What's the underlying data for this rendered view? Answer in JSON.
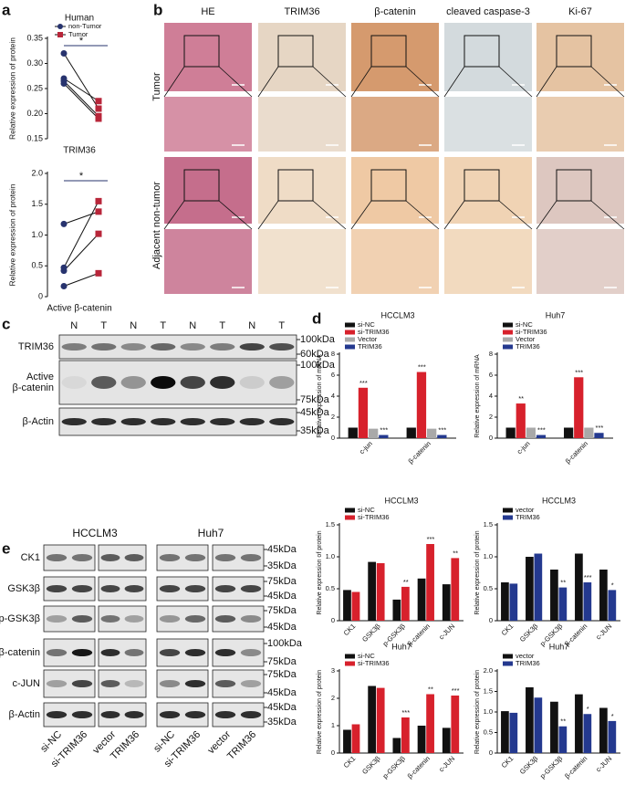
{
  "panel_letters": [
    "a",
    "b",
    "c",
    "d",
    "e"
  ],
  "histology": {
    "columns": [
      "HE",
      "TRIM36",
      "β-catenin",
      "cleaved caspase-3",
      "Ki-67"
    ],
    "rows": [
      "Tumor",
      "Adjacent non-tumor"
    ]
  },
  "blot_c": {
    "lanes": [
      "N",
      "T",
      "N",
      "T",
      "N",
      "T",
      "N",
      "T"
    ],
    "rows": [
      {
        "label": [
          "TRIM36"
        ],
        "markers": [
          "100kDa",
          "60kDa"
        ]
      },
      {
        "label": [
          "Active",
          "β-catenin"
        ],
        "markers": [
          "100kDa",
          "75kDa"
        ]
      },
      {
        "label": [
          "β-Actin"
        ],
        "markers": [
          "45kDa",
          "35kDa"
        ]
      }
    ]
  },
  "blot_e": {
    "cell_lines": [
      "HCCLM3",
      "Huh7"
    ],
    "lanes": [
      "si-NC",
      "si-TRIM36",
      "vector",
      "TRIM36",
      "si-NC",
      "si-TRIM36",
      "vector",
      "TRIM36"
    ],
    "rows": [
      {
        "label": "CK1",
        "markers": [
          "45kDa",
          "35kDa"
        ]
      },
      {
        "label": "GSK3β",
        "markers": [
          "75kDa",
          "45kDa"
        ]
      },
      {
        "label": "p-GSK3β",
        "markers": [
          "75kDa",
          "45kDa"
        ]
      },
      {
        "label": "β-catenin",
        "markers": [
          "100kDa",
          "75kDa"
        ]
      },
      {
        "label": "c-JUN",
        "markers": [
          "75kDa",
          "45kDa"
        ]
      },
      {
        "label": "β-Actin",
        "markers": [
          "45kDa",
          "35kDa"
        ]
      }
    ]
  },
  "chart_data": [
    {
      "type": "paired",
      "title": "Human",
      "xlabel": "TRIM36",
      "ylabel": "Relative expression of protein",
      "series": [
        {
          "name": "non-Tumor",
          "color": "#27336e",
          "values": [
            0.32,
            0.27,
            0.265,
            0.26
          ]
        },
        {
          "name": "Tumor",
          "color": "#b8263a",
          "values": [
            0.21,
            0.225,
            0.195,
            0.19
          ]
        }
      ],
      "ylim": [
        0.15,
        0.35
      ],
      "yticks": [
        0.15,
        {
          "value": 0.2,
          "label": "0.20"
        },
        0.25,
        {
          "value": 0.3,
          "label": "0.30"
        },
        0.35
      ],
      "annotation": "*"
    },
    {
      "type": "paired",
      "xlabel": "Active β-catenin",
      "ylabel": "Relative expression of protein",
      "series": [
        {
          "color": "#27336e",
          "values": [
            1.18,
            0.47,
            0.42,
            0.17
          ]
        },
        {
          "color": "#b8263a",
          "values": [
            1.38,
            1.55,
            1.02,
            0.38
          ]
        }
      ],
      "ylim": [
        0,
        2
      ],
      "yticks": [
        0,
        0.5,
        {
          "value": 1,
          "label": "1.0"
        },
        1.5,
        {
          "value": 2,
          "label": "2.0"
        }
      ],
      "annotation": "*"
    },
    {
      "type": "bar",
      "title": "HCCLM3",
      "ylabel": "Relative expression of mRNA",
      "categories": [
        "c-jun",
        "β-catenin"
      ],
      "series": [
        {
          "name": "si-NC",
          "color": "#111111",
          "values": [
            1.0,
            1.0
          ],
          "stars": [
            null,
            null
          ]
        },
        {
          "name": "si-TRIM36",
          "color": "#d7212c",
          "values": [
            4.8,
            6.3
          ],
          "stars": [
            "***",
            "***"
          ]
        },
        {
          "name": "Vector",
          "color": "#a9a9a9",
          "values": [
            0.9,
            0.9
          ],
          "stars": [
            null,
            null
          ]
        },
        {
          "name": "TRIM36",
          "color": "#24398f",
          "values": [
            0.3,
            0.3
          ],
          "stars": [
            "***",
            "***"
          ]
        }
      ],
      "ylim": [
        0,
        8
      ],
      "yticks": [
        0,
        2,
        4,
        6,
        8
      ]
    },
    {
      "type": "bar",
      "title": "Huh7",
      "ylabel": "Relative expression of mRNA",
      "categories": [
        "c-jun",
        "β-catenin"
      ],
      "series": [
        {
          "name": "si-NC",
          "color": "#111111",
          "values": [
            1.0,
            1.0
          ],
          "stars": [
            null,
            null
          ]
        },
        {
          "name": "si-TRIM36",
          "color": "#d7212c",
          "values": [
            3.3,
            5.8
          ],
          "stars": [
            "**",
            "***"
          ]
        },
        {
          "name": "Vector",
          "color": "#a9a9a9",
          "values": [
            1.0,
            1.0
          ],
          "stars": [
            null,
            null
          ]
        },
        {
          "name": "TRIM36",
          "color": "#24398f",
          "values": [
            0.3,
            0.5
          ],
          "stars": [
            "***",
            "***"
          ]
        }
      ],
      "ylim": [
        0,
        8
      ],
      "yticks": [
        0,
        2,
        4,
        6,
        8
      ]
    },
    {
      "type": "bar",
      "title": "HCCLM3",
      "ylabel": "Relative expression of protein",
      "categories": [
        "CK1",
        "GSK3β",
        "p-GSK3β",
        "β-catenin",
        "c-JUN"
      ],
      "series": [
        {
          "name": "si-NC",
          "color": "#111111",
          "values": [
            0.48,
            0.92,
            0.33,
            0.66,
            0.57
          ],
          "stars": [
            null,
            null,
            null,
            null,
            null
          ]
        },
        {
          "name": "si-TRIM36",
          "color": "#d7212c",
          "values": [
            0.45,
            0.9,
            0.53,
            1.2,
            0.98
          ],
          "stars": [
            null,
            null,
            "**",
            "***",
            "**"
          ]
        }
      ],
      "ylim": [
        0,
        1.5
      ],
      "yticks": [
        0,
        0.5,
        {
          "value": 1,
          "label": "1.0"
        },
        1.5
      ]
    },
    {
      "type": "bar",
      "title": "HCCLM3",
      "ylabel": "Relative expression of protein",
      "categories": [
        "CK1",
        "GSK3β",
        "p-GSK3β",
        "β-catenin",
        "c-JUN"
      ],
      "series": [
        {
          "name": "vector",
          "color": "#111111",
          "values": [
            0.6,
            1.0,
            0.8,
            1.05,
            0.8
          ],
          "stars": [
            null,
            null,
            null,
            null,
            null
          ]
        },
        {
          "name": "TRIM36",
          "color": "#24398f",
          "values": [
            0.58,
            1.05,
            0.52,
            0.6,
            0.48
          ],
          "stars": [
            null,
            null,
            "**",
            "***",
            "*"
          ]
        }
      ],
      "ylim": [
        0,
        1.5
      ],
      "yticks": [
        0,
        0.5,
        {
          "value": 1,
          "label": "1.0"
        },
        1.5
      ]
    },
    {
      "type": "bar",
      "title": "Huh7",
      "ylabel": "Relative expression of protein",
      "categories": [
        "CK1",
        "GSK3β",
        "p-GSK3β",
        "β-catenin",
        "c-JUN"
      ],
      "series": [
        {
          "name": "si-NC",
          "color": "#111111",
          "values": [
            0.85,
            2.45,
            0.55,
            1.0,
            0.92
          ],
          "stars": [
            null,
            null,
            null,
            null,
            null
          ]
        },
        {
          "name": "si-TRIM36",
          "color": "#d7212c",
          "values": [
            1.05,
            2.38,
            1.3,
            2.15,
            2.1
          ],
          "stars": [
            null,
            null,
            "***",
            "**",
            "***"
          ]
        }
      ],
      "ylim": [
        0,
        3
      ],
      "yticks": [
        0,
        1,
        2,
        3
      ]
    },
    {
      "type": "bar",
      "title": "Huh7",
      "ylabel": "Relative expression of protein",
      "categories": [
        "CK1",
        "GSK3β",
        "p-GSK3β",
        "β-catenin",
        "c-JUN"
      ],
      "series": [
        {
          "name": "vector",
          "color": "#111111",
          "values": [
            1.02,
            1.6,
            1.25,
            1.43,
            1.1
          ],
          "stars": [
            null,
            null,
            null,
            null,
            null
          ]
        },
        {
          "name": "TRIM36",
          "color": "#24398f",
          "values": [
            0.98,
            1.35,
            0.65,
            0.95,
            0.78
          ],
          "stars": [
            null,
            null,
            "**",
            "*",
            "*"
          ]
        }
      ],
      "ylim": [
        0,
        2
      ],
      "yticks": [
        0,
        0.5,
        {
          "value": 1,
          "label": "1.0"
        },
        1.5,
        {
          "value": 2,
          "label": "2.0"
        }
      ]
    }
  ]
}
